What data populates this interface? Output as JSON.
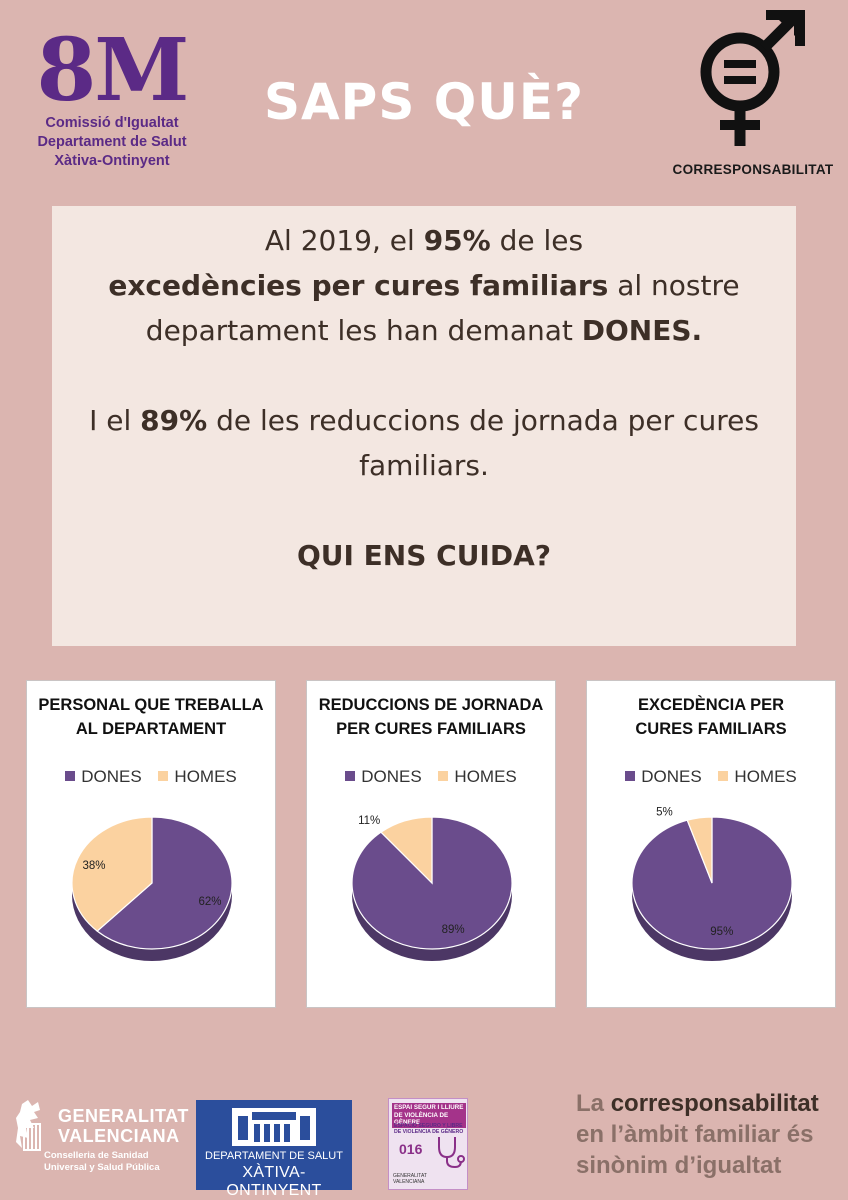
{
  "header": {
    "logo_big": "8M",
    "logo_lines": [
      "Comissió d'Igualtat",
      "Departament de Salut",
      "Xàtiva-Ontinyent"
    ],
    "title": "SAPS QUÈ?",
    "symbol_label": "CORRESPONSABILITAT",
    "symbol_icon": "gender-equality-icon"
  },
  "info": {
    "p1_a": "Al 2019, el ",
    "p1_b": "95%",
    "p1_c": " de les ",
    "p1_d": "excedències per cures familiars",
    "p1_e": " al nostre departament les han demanat ",
    "p1_f": "DONES.",
    "p2_a": "I el ",
    "p2_b": "89%",
    "p2_c": " de les reduccions de jornada per cures familiars.",
    "p3": "QUI ENS CUIDA?"
  },
  "legend": {
    "dones": "DONES",
    "homes": "HOMES"
  },
  "colors": {
    "background": "#dbb5b0",
    "dones": "#6a4c8c",
    "homes": "#fbd2a0",
    "accent": "#5b2a86"
  },
  "chart_data": [
    {
      "type": "pie",
      "title_lines": [
        "PERSONAL QUE TREBALLA",
        "AL DEPARTAMENT"
      ],
      "categories": [
        "DONES",
        "HOMES"
      ],
      "values": [
        62,
        38
      ],
      "labels": [
        "62%",
        "38%"
      ],
      "legend": "top"
    },
    {
      "type": "pie",
      "title_lines": [
        "REDUCCIONS DE JORNADA",
        "PER CURES FAMILIARS"
      ],
      "categories": [
        "DONES",
        "HOMES"
      ],
      "values": [
        89,
        11
      ],
      "labels": [
        "89%",
        "11%"
      ],
      "legend": "top"
    },
    {
      "type": "pie",
      "title_lines": [
        "EXCEDÈNCIA PER",
        "CURES FAMILIARS"
      ],
      "categories": [
        "DONES",
        "HOMES"
      ],
      "values": [
        95,
        5
      ],
      "labels": [
        "95%",
        "5%"
      ],
      "legend": "top"
    }
  ],
  "footer": {
    "gva_name_1": "GENERALITAT",
    "gva_name_2": "VALENCIANA",
    "gva_sub_1": "Conselleria de Sanidad",
    "gva_sub_2": "Universal y Salud Pública",
    "dept_line1": "DEPARTAMENT DE SALUT",
    "dept_line2": "XÀTIVA-ONTINYENT",
    "oig_line1": "ESPAI SEGUR I LLIURE DE VIOLÈNCIA DE GÈNERE",
    "oig_line2": "ESPACIO SEGURO Y LIBRE DE VIOLENCIA DE GÉNERO",
    "oig_num": "016",
    "oig_foot_1": "GENERALITAT",
    "oig_foot_2": "VALENCIANA",
    "tag_la": "La ",
    "tag_strong": "corresponsabilitat",
    "tag_rest": "en l’àmbit familiar és sinònim d’igualtat"
  }
}
